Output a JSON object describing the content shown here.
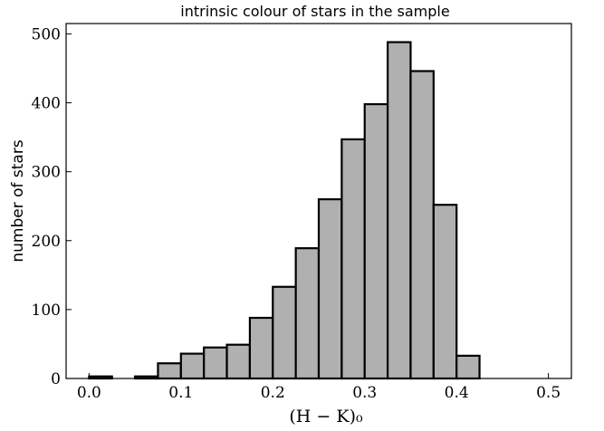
{
  "chart_data": {
    "type": "bar",
    "title": "intrinsic colour of stars in the sample",
    "xlabel": "(H − K)₀",
    "ylabel": "number of stars",
    "xlim": [
      -0.025,
      0.525
    ],
    "ylim": [
      0,
      515
    ],
    "x_ticks": [
      "0.0",
      "0.1",
      "0.2",
      "0.3",
      "0.4",
      "0.5"
    ],
    "y_ticks": [
      "0",
      "100",
      "200",
      "300",
      "400",
      "500"
    ],
    "bin_width": 0.025,
    "bins": [
      {
        "start": 0.0,
        "count": 3
      },
      {
        "start": 0.05,
        "count": 3
      },
      {
        "start": 0.075,
        "count": 22
      },
      {
        "start": 0.1,
        "count": 36
      },
      {
        "start": 0.125,
        "count": 45
      },
      {
        "start": 0.15,
        "count": 49
      },
      {
        "start": 0.175,
        "count": 88
      },
      {
        "start": 0.2,
        "count": 133
      },
      {
        "start": 0.225,
        "count": 189
      },
      {
        "start": 0.25,
        "count": 260
      },
      {
        "start": 0.275,
        "count": 347
      },
      {
        "start": 0.3,
        "count": 398
      },
      {
        "start": 0.325,
        "count": 488
      },
      {
        "start": 0.35,
        "count": 446
      },
      {
        "start": 0.375,
        "count": 252
      },
      {
        "start": 0.4,
        "count": 33
      }
    ],
    "grid": false,
    "bar_fill": "#b0b0b0",
    "bar_edge": "#000000"
  }
}
